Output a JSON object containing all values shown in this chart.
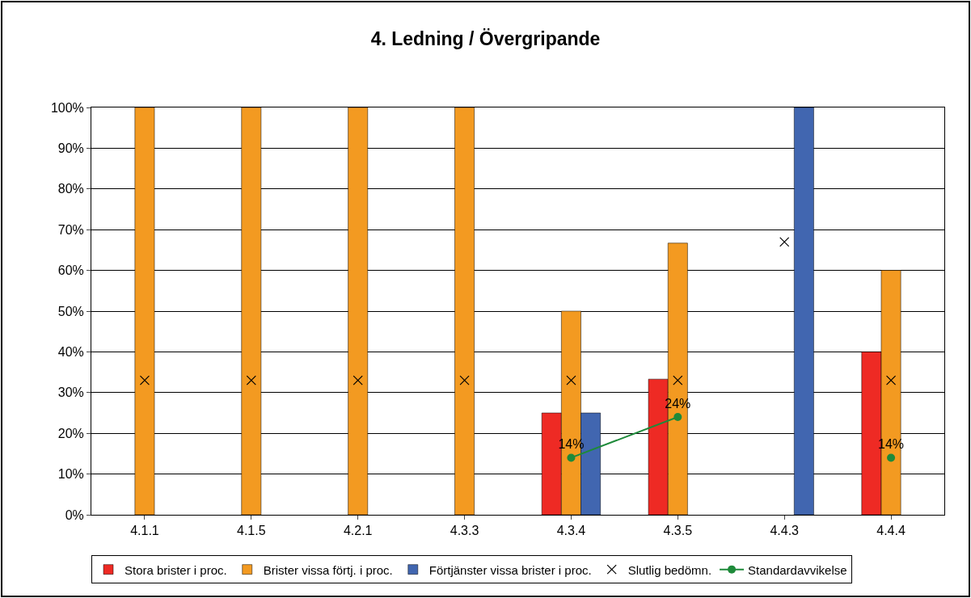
{
  "chart_data": {
    "type": "bar",
    "title": "4. Ledning / Övergripande",
    "categories": [
      "4.1.1",
      "4.1.5",
      "4.2.1",
      "4.3.3",
      "4.3.4",
      "4.3.5",
      "4.4.3",
      "4.4.4"
    ],
    "series": [
      {
        "name": "Stora brister i proc.",
        "color": "#ee2a24",
        "values": [
          null,
          null,
          null,
          null,
          25,
          33.3,
          null,
          40
        ]
      },
      {
        "name": "Brister vissa förtj. i proc.",
        "color": "#f39a21",
        "values": [
          100,
          100,
          100,
          100,
          50,
          66.7,
          null,
          60
        ]
      },
      {
        "name": "Förtjänster vissa brister i proc.",
        "color": "#4166b0",
        "values": [
          null,
          null,
          null,
          null,
          25,
          null,
          100,
          null
        ]
      },
      {
        "name": "Slutlig bedömn.",
        "type": "scatter",
        "marker": "cross",
        "color": "#000000",
        "values": [
          33,
          33,
          33,
          33,
          33,
          33,
          67,
          33
        ]
      },
      {
        "name": "Standardavvikelse",
        "type": "line",
        "marker": "circle",
        "color": "#1e8a3a",
        "values": [
          null,
          null,
          null,
          null,
          14,
          24,
          null,
          14
        ],
        "value_labels": [
          null,
          null,
          null,
          null,
          "14%",
          "24%",
          null,
          "14%"
        ]
      }
    ],
    "ylim": [
      0,
      100
    ],
    "yticks": [
      {
        "value": 0,
        "label": "0%"
      },
      {
        "value": 10,
        "label": "10%"
      },
      {
        "value": 20,
        "label": "20%"
      },
      {
        "value": 30,
        "label": "30%"
      },
      {
        "value": 40,
        "label": "40%"
      },
      {
        "value": 50,
        "label": "50%"
      },
      {
        "value": 60,
        "label": "60%"
      },
      {
        "value": 70,
        "label": "70%"
      },
      {
        "value": 80,
        "label": "80%"
      },
      {
        "value": 90,
        "label": "90%"
      },
      {
        "value": 100,
        "label": "100%"
      }
    ],
    "grid": "y",
    "legend": "bottom"
  }
}
